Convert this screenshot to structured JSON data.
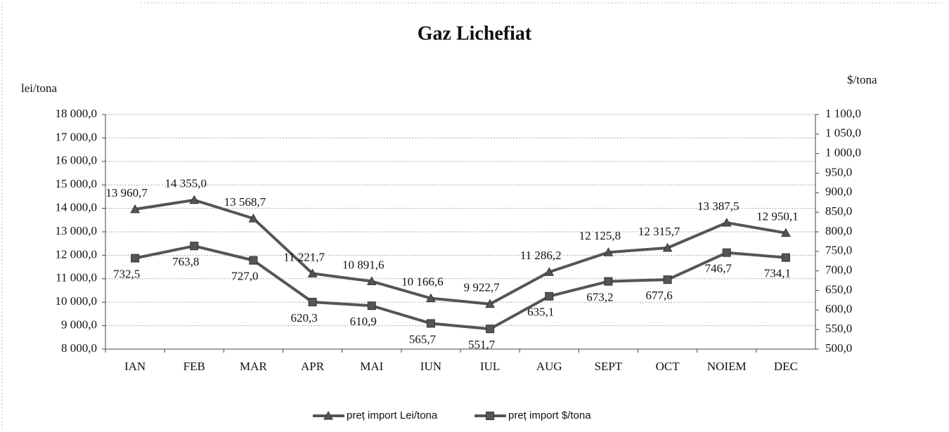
{
  "chart_data": {
    "type": "line",
    "title": "Gaz Lichefiat",
    "y_label": "lei/tona",
    "y2_label": "$/tona",
    "categories": [
      "IAN",
      "FEB",
      "MAR",
      "APR",
      "MAI",
      "IUN",
      "IUL",
      "AUG",
      "SEPT",
      "OCT",
      "NOIEM",
      "DEC"
    ],
    "series": [
      {
        "name": "preț import Lei/tona",
        "color": "#555555",
        "marker": "triangle",
        "values": [
          13960.7,
          14355.0,
          13568.7,
          11221.7,
          10891.6,
          10166.6,
          9922.7,
          11286.2,
          12125.8,
          12315.7,
          13387.5,
          12950.1
        ],
        "value_labels": [
          "13 960,7",
          "14 355,0",
          "13 568,7",
          "11 221,7",
          "10 891,6",
          "10 166,6",
          "9 922,7",
          "11 286,2",
          "12 125,8",
          "12 315,7",
          "13 387,5",
          "12 950,1"
        ]
      },
      {
        "name": "preț import $/tona",
        "color": "#555555",
        "marker": "square",
        "axis": "y2",
        "values": [
          732.5,
          763.8,
          727.0,
          620.3,
          610.9,
          565.7,
          551.7,
          635.1,
          673.2,
          677.6,
          746.7,
          734.1
        ],
        "value_labels": [
          "732,5",
          "763,8",
          "727,0",
          "620,3",
          "610,9",
          "565,7",
          "551,7",
          "635,1",
          "673,2",
          "677,6",
          "746,7",
          "734,1"
        ]
      }
    ],
    "ylim": [
      8000,
      18000
    ],
    "yticks": [
      {
        "value": 8000,
        "label": "8 000,0"
      },
      {
        "value": 9000,
        "label": "9 000,0"
      },
      {
        "value": 10000,
        "label": "10 000,0"
      },
      {
        "value": 11000,
        "label": "11 000,0"
      },
      {
        "value": 12000,
        "label": "12 000,0"
      },
      {
        "value": 13000,
        "label": "13 000,0"
      },
      {
        "value": 14000,
        "label": "14 000,0"
      },
      {
        "value": 15000,
        "label": "15 000,0"
      },
      {
        "value": 16000,
        "label": "16 000,0"
      },
      {
        "value": 17000,
        "label": "17 000,0"
      },
      {
        "value": 18000,
        "label": "18 000,0"
      }
    ],
    "y2lim": [
      500,
      1100
    ],
    "y2ticks": [
      {
        "value": 500,
        "label": "500,0"
      },
      {
        "value": 550,
        "label": "550,0"
      },
      {
        "value": 600,
        "label": "600,0"
      },
      {
        "value": 650,
        "label": "650,0"
      },
      {
        "value": 700,
        "label": "700,0"
      },
      {
        "value": 750,
        "label": "750,0"
      },
      {
        "value": 800,
        "label": "800,0"
      },
      {
        "value": 850,
        "label": "850,0"
      },
      {
        "value": 900,
        "label": "900,0"
      },
      {
        "value": 950,
        "label": "950,0"
      },
      {
        "value": 1000,
        "label": "1 000,0"
      },
      {
        "value": 1050,
        "label": "1 050,0"
      },
      {
        "value": 1100,
        "label": "1 100,0"
      }
    ],
    "grid": true,
    "legend": "bottom"
  }
}
